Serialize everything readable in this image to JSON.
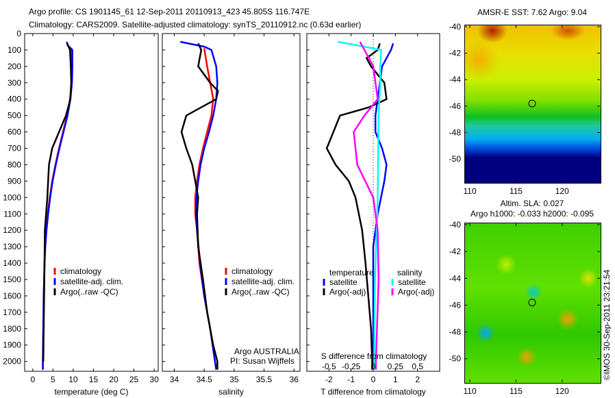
{
  "title": {
    "line1": "Argo profile: CS 1901145_61 12-Sep-2011 20110913_423 45.805S 116.747E",
    "line2": "Climatology: CARS2009. Satellite-adjusted climatology: synTS_20110912.nc (0.63d earlier)"
  },
  "chart_data": [
    {
      "type": "line",
      "name": "temperature-profile",
      "xlabel": "temperature (deg C)",
      "ylabel": "depth",
      "xlim": [
        -2,
        31
      ],
      "ylim": [
        2060,
        0
      ],
      "xticks": [
        0,
        5,
        10,
        15,
        20,
        25,
        30
      ],
      "yticks": [
        0,
        100,
        200,
        300,
        400,
        500,
        600,
        700,
        800,
        900,
        1000,
        1100,
        1200,
        1300,
        1400,
        1500,
        1600,
        1700,
        1800,
        1900,
        2000
      ],
      "legend": [
        "climatology",
        "satellite-adj. clim.",
        "Argo(..raw -QC)"
      ],
      "series": [
        {
          "name": "climatology",
          "color": "#ff0000",
          "depth": [
            90,
            200,
            300,
            400,
            500,
            600,
            700,
            800,
            900,
            1000,
            1100,
            1200,
            1300,
            1400,
            1600,
            1800,
            2000,
            2050
          ],
          "value": [
            9.4,
            9.5,
            9.6,
            9.2,
            8.5,
            7.5,
            6.5,
            5.6,
            4.8,
            4.2,
            3.7,
            3.3,
            3.1,
            2.9,
            2.7,
            2.6,
            2.5,
            2.5
          ]
        },
        {
          "name": "satellite-adj. clim.",
          "color": "#0000ff",
          "depth": [
            50,
            70,
            100,
            200,
            300,
            400,
            500,
            600,
            700,
            800,
            900,
            1000,
            1100,
            1200,
            1300,
            1400,
            1600,
            1800,
            2000,
            2050
          ],
          "value": [
            8.4,
            8.6,
            9.8,
            9.8,
            9.7,
            9.3,
            8.6,
            7.6,
            6.6,
            5.7,
            4.9,
            4.3,
            3.8,
            3.4,
            3.1,
            2.9,
            2.7,
            2.6,
            2.5,
            2.5
          ]
        },
        {
          "name": "Argo(..raw -QC)",
          "color": "#000000",
          "depth": [
            60,
            100,
            200,
            300,
            400,
            500,
            600,
            700,
            800,
            900,
            1000,
            1100,
            1200,
            1400,
            1800,
            2000
          ],
          "value": [
            8.5,
            9.2,
            9.4,
            9.5,
            9.3,
            8.2,
            6.5,
            4.8,
            4.0,
            3.8,
            3.6,
            3.3,
            3.0,
            2.9,
            2.7,
            2.6
          ]
        }
      ]
    },
    {
      "type": "line",
      "name": "salinity-profile",
      "xlabel": "salinity",
      "xlim": [
        33.8,
        36.1
      ],
      "ylim": [
        2060,
        0
      ],
      "xticks": [
        34,
        34.5,
        35,
        35.5,
        36
      ],
      "legend": [
        "climatology",
        "satellite-adj. clim.",
        "Argo(..raw -QC)"
      ],
      "annotation": [
        "Argo AUSTRALIA",
        "PI: Susan Wijffels"
      ],
      "series": [
        {
          "name": "climatology",
          "color": "#ff0000",
          "depth": [
            90,
            200,
            300,
            400,
            500,
            600,
            700,
            800,
            900,
            1000,
            1100,
            1200,
            1400,
            1600,
            1800,
            2000,
            2050
          ],
          "value": [
            34.5,
            34.55,
            34.6,
            34.65,
            34.62,
            34.55,
            34.48,
            34.42,
            34.38,
            34.35,
            34.35,
            34.38,
            34.42,
            34.5,
            34.6,
            34.68,
            34.7
          ]
        },
        {
          "name": "satellite-adj. clim.",
          "color": "#0000ff",
          "depth": [
            50,
            80,
            100,
            200,
            300,
            400,
            500,
            600,
            700,
            800,
            900,
            1000,
            1100,
            1200,
            1400,
            1600,
            1800,
            2000,
            2050
          ],
          "value": [
            34.1,
            34.5,
            34.62,
            34.7,
            34.72,
            34.7,
            34.65,
            34.58,
            34.5,
            34.44,
            34.4,
            34.37,
            34.36,
            34.38,
            34.43,
            34.5,
            34.6,
            34.68,
            34.7
          ]
        },
        {
          "name": "Argo(..raw -QC)",
          "color": "#000000",
          "depth": [
            60,
            100,
            200,
            300,
            350,
            400,
            450,
            500,
            600,
            700,
            800,
            900,
            1000,
            1100,
            1300,
            1500,
            1700,
            1900,
            2000,
            2050
          ],
          "value": [
            34.4,
            34.45,
            34.4,
            34.6,
            34.73,
            34.7,
            34.45,
            34.2,
            34.12,
            34.2,
            34.3,
            34.35,
            34.4,
            34.38,
            34.4,
            34.48,
            34.55,
            34.65,
            34.72,
            34.72
          ]
        }
      ]
    },
    {
      "type": "line",
      "name": "difference-profile",
      "xlabel": "T difference from climatology",
      "x2label": "S difference from climatology",
      "xlim": [
        -3,
        3
      ],
      "ylim": [
        2060,
        0
      ],
      "xticks": [
        -2,
        -1,
        0,
        1,
        2
      ],
      "x2ticks": [
        "-0.5",
        "-0.25",
        "0",
        "0.25",
        "0.5"
      ],
      "legend_temperature": {
        "title": "temperature",
        "items": [
          "satellite",
          "Argo(-adj)"
        ]
      },
      "legend_salinity": {
        "title": "salinity",
        "items": [
          "satellite",
          "Argo(-adj)"
        ]
      },
      "series": [
        {
          "name": "temperature satellite",
          "axis": "T",
          "color": "#0000ff",
          "depth": [
            60,
            100,
            200,
            300,
            500,
            600,
            700,
            800,
            900,
            1100,
            1300,
            2000,
            2050
          ],
          "value": [
            0.9,
            0.8,
            0.4,
            0.3,
            0.1,
            0.1,
            0.4,
            0.6,
            0.5,
            0.2,
            0,
            0,
            0
          ]
        },
        {
          "name": "temperature Argo(-adj)",
          "axis": "T",
          "color": "#000000",
          "depth": [
            60,
            100,
            150,
            200,
            300,
            400,
            450,
            500,
            600,
            700,
            800,
            900,
            1000,
            1200,
            1400,
            1800,
            2000,
            2050
          ],
          "value": [
            0.3,
            0.2,
            -0.3,
            -0.1,
            0.5,
            0.6,
            -0.2,
            -1.5,
            -1.8,
            -2.1,
            -1.7,
            -1.1,
            -0.8,
            -0.5,
            -0.35,
            -0.1,
            -0.05,
            -0.05
          ]
        },
        {
          "name": "salinity satellite",
          "axis": "S",
          "color": "#00ffff",
          "depth": [
            50,
            80,
            100,
            200,
            300,
            500,
            1000,
            1500,
            2000,
            2050
          ],
          "value": [
            -0.4,
            -0.1,
            0.09,
            0.08,
            0.08,
            0.06,
            0.05,
            0.02,
            0.01,
            0.01
          ]
        },
        {
          "name": "salinity Argo(-adj)",
          "axis": "S",
          "color": "#ff00ff",
          "depth": [
            50,
            100,
            200,
            400,
            500,
            600,
            700,
            800,
            1000,
            1200,
            1500,
            2000,
            2050
          ],
          "value": [
            -0.15,
            -0.1,
            0,
            0.05,
            -0.1,
            -0.22,
            -0.2,
            -0.18,
            0,
            0.05,
            0.06,
            0.03,
            0.03
          ]
        }
      ]
    },
    {
      "type": "heatmap",
      "name": "sst-map",
      "title": "AMSR-E SST: 7.62 Argo: 9.04",
      "xlim": [
        109.4,
        124.1
      ],
      "ylim": [
        -51.75,
        -39.9
      ],
      "xticks": [
        110,
        115,
        120
      ],
      "yticks": [
        -40,
        -42,
        -44,
        -46,
        -48,
        -50
      ],
      "marker": {
        "lon": 116.747,
        "lat": -45.805
      }
    },
    {
      "type": "heatmap",
      "name": "sla-map",
      "title": "Altim. SLA: 0.027",
      "subtitle": "Argo h1000: -0.033 h2000: -0.095",
      "xlim": [
        109.4,
        124.1
      ],
      "ylim": [
        -51.75,
        -39.9
      ],
      "xticks": [
        110,
        115,
        120
      ],
      "yticks": [
        -40,
        -42,
        -44,
        -46,
        -48,
        -50
      ],
      "marker": {
        "lon": 116.747,
        "lat": -45.805
      }
    }
  ],
  "credit": "©IMOS 30-Sep-2011 23:21:54"
}
